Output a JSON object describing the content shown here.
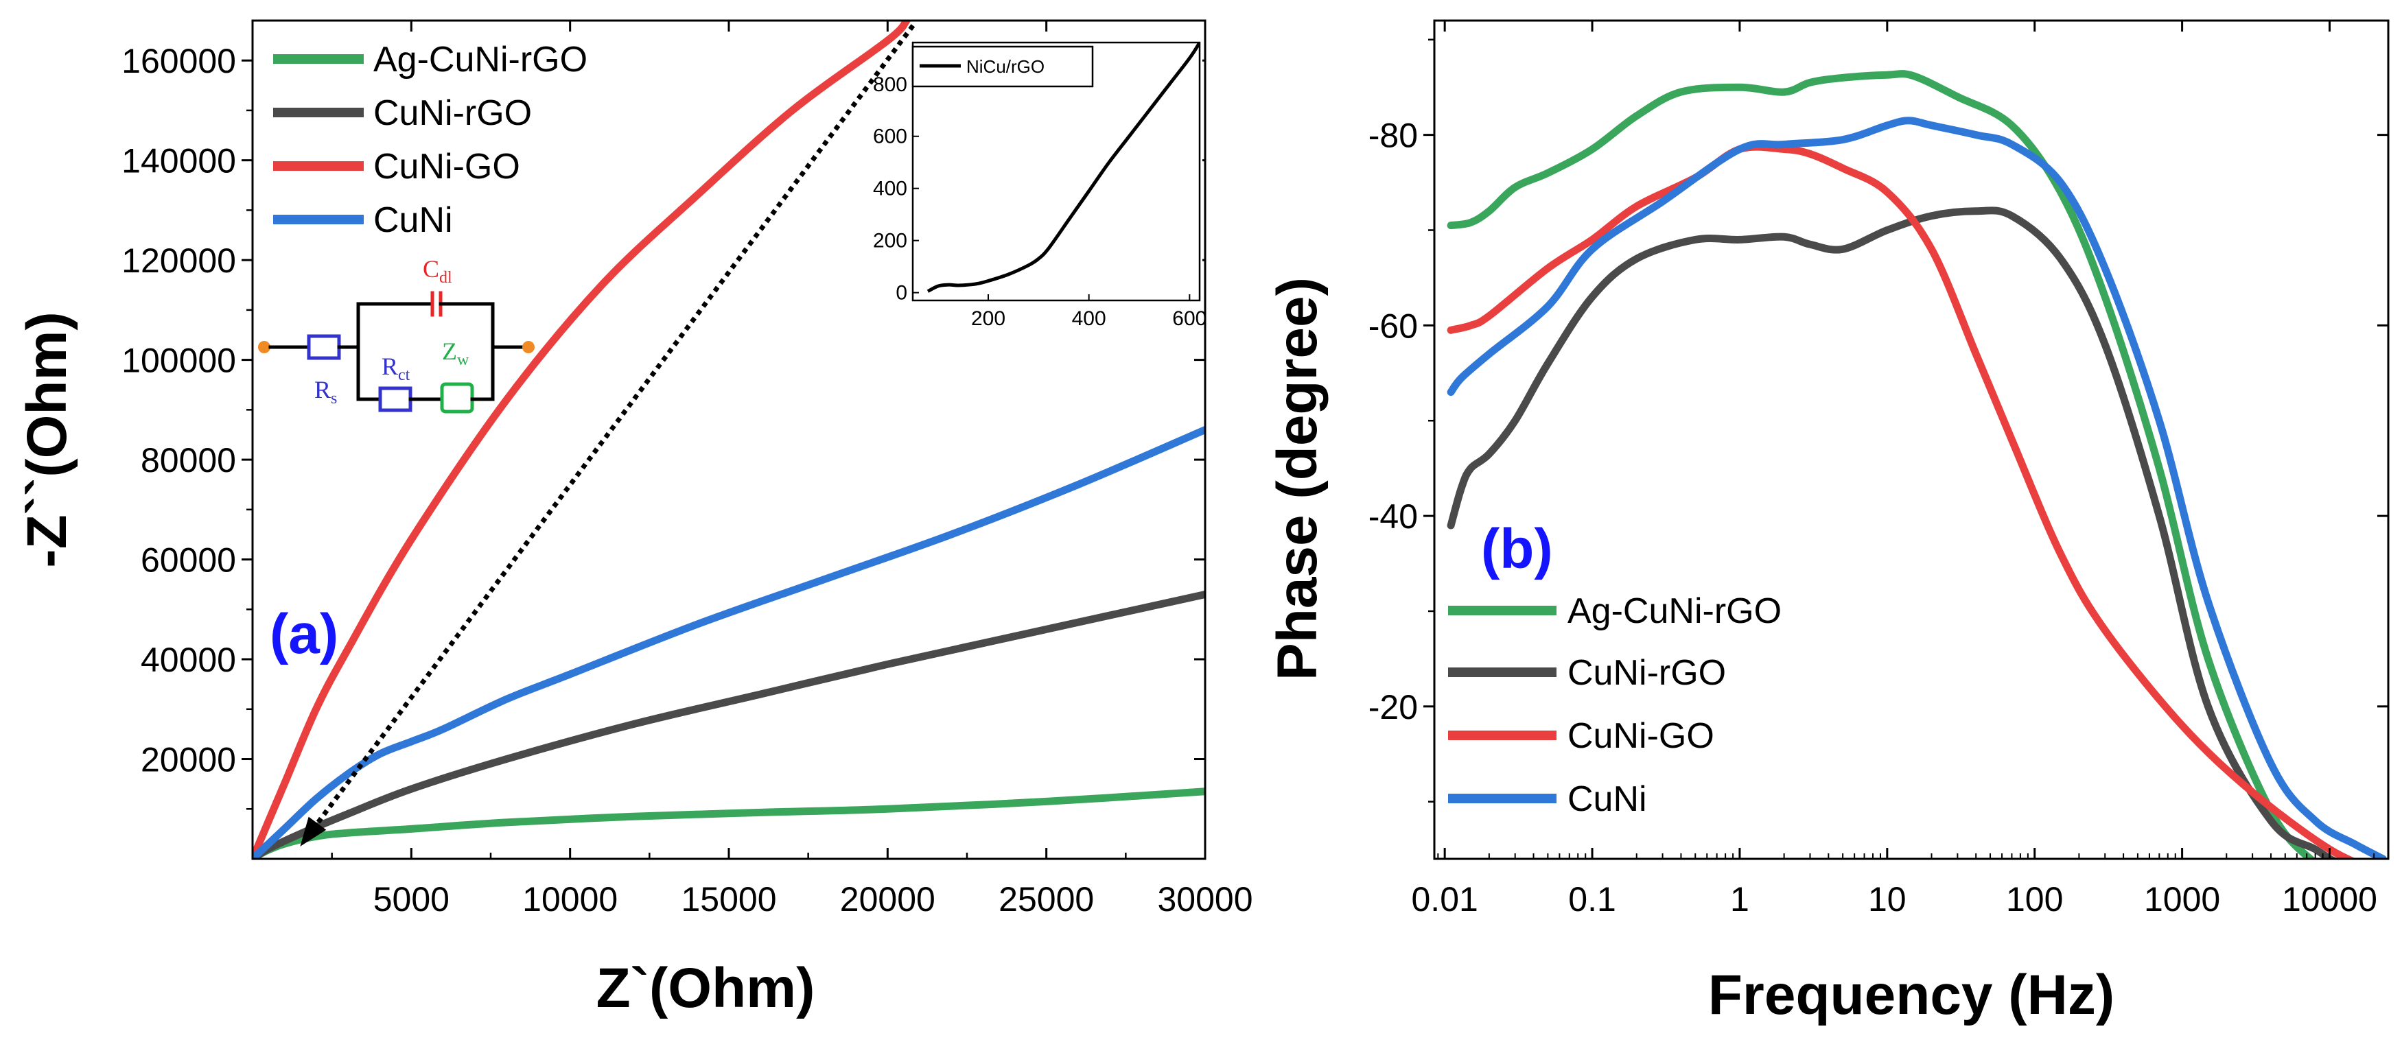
{
  "colors": {
    "green": "#3aa65c",
    "black": "#4a4a4a",
    "red": "#ea3f3f",
    "blue": "#2f78d8",
    "label_blue": "#1414ff",
    "cdl_red": "#e82828",
    "zw_green": "#1fb04a",
    "terminal": "#f08a24"
  },
  "chart_data": [
    {
      "id": "a",
      "type": "line",
      "panel_label": "(a)",
      "xlabel": "Z`(Ohm)",
      "ylabel": "-Z``(Ohm)",
      "xlim": [
        0,
        30000
      ],
      "ylim": [
        0,
        168000
      ],
      "xticks": [
        5000,
        10000,
        15000,
        20000,
        25000,
        30000
      ],
      "xtick_labels": [
        "5000",
        "10000",
        "15000",
        "20000",
        "25000",
        "30000"
      ],
      "yticks": [
        20000,
        40000,
        60000,
        80000,
        100000,
        120000,
        140000,
        160000
      ],
      "ytick_labels": [
        "20000",
        "40000",
        "60000",
        "80000",
        "100000",
        "120000",
        "140000",
        "160000"
      ],
      "legend": [
        "Ag-CuNi-rGO",
        "CuNi-rGO",
        "CuNi-GO",
        "CuNi"
      ],
      "series": [
        {
          "name": "Ag-CuNi-rGO",
          "color": "green",
          "x": [
            0,
            400,
            1000,
            2000,
            3000,
            5000,
            8000,
            12000,
            16000,
            20000,
            25000,
            30000
          ],
          "y": [
            0,
            1500,
            3000,
            4500,
            5200,
            6000,
            7300,
            8500,
            9300,
            10000,
            11500,
            13500
          ]
        },
        {
          "name": "CuNi-rGO",
          "color": "black",
          "x": [
            0,
            500,
            1500,
            3000,
            5000,
            8000,
            12000,
            16000,
            20000,
            25000,
            30000
          ],
          "y": [
            0,
            2000,
            5000,
            9000,
            14000,
            20000,
            27000,
            33000,
            39000,
            46000,
            53000
          ]
        },
        {
          "name": "CuNi-GO",
          "color": "red",
          "x": [
            0,
            1000,
            2000,
            3000,
            5000,
            8000,
            11000,
            14000,
            17000,
            20000,
            20600
          ],
          "y": [
            0,
            15000,
            30000,
            42000,
            64000,
            92000,
            115000,
            133000,
            150000,
            164000,
            168000
          ]
        },
        {
          "name": "CuNi",
          "color": "blue",
          "x": [
            0,
            1000,
            2000,
            3000,
            4000,
            5000,
            6000,
            8000,
            10000,
            14000,
            18000,
            22000,
            26000,
            30000
          ],
          "y": [
            0,
            6000,
            12000,
            17000,
            21000,
            23500,
            26000,
            32000,
            37000,
            47000,
            56000,
            65000,
            75000,
            86000
          ]
        }
      ],
      "arrow": {
        "from": [
          20800,
          167000
        ],
        "to": [
          1500,
          2500
        ]
      },
      "inset": {
        "xlim": [
          50,
          620
        ],
        "ylim": [
          -30,
          960
        ],
        "xticks": [
          200,
          400,
          600
        ],
        "xtick_labels": [
          "200",
          "400",
          "600"
        ],
        "yticks": [
          0,
          200,
          400,
          600,
          800
        ],
        "ytick_labels": [
          "0",
          "200",
          "400",
          "600",
          "800"
        ],
        "legend": "NiCu/rGO",
        "series": {
          "name": "NiCu/rGO",
          "color": "#000000",
          "x": [
            80,
            100,
            120,
            140,
            160,
            180,
            200,
            240,
            280,
            300,
            320,
            360,
            400,
            440,
            480,
            520,
            560,
            600,
            620
          ],
          "y": [
            5,
            25,
            30,
            28,
            30,
            35,
            45,
            70,
            105,
            130,
            170,
            280,
            390,
            500,
            600,
            700,
            800,
            900,
            960
          ]
        }
      },
      "circuit": {
        "cdl": "C",
        "cdl_sub": "dl",
        "rs": "R",
        "rs_sub": "s",
        "rct": "R",
        "rct_sub": "ct",
        "zw": "Z",
        "zw_sub": "w"
      }
    },
    {
      "id": "b",
      "type": "line",
      "panel_label": "(b)",
      "xlabel": "Frequency (Hz)",
      "ylabel": "Phase (degree)",
      "xscale": "log",
      "xlim": [
        0.0085,
        25000
      ],
      "ylim": [
        -4,
        -92
      ],
      "xticks": [
        0.01,
        0.1,
        1,
        10,
        100,
        1000,
        10000
      ],
      "xtick_labels": [
        "0.01",
        "0.1",
        "1",
        "10",
        "100",
        "1000",
        "10000"
      ],
      "yticks": [
        -20,
        -40,
        -60,
        -80
      ],
      "ytick_labels": [
        "-20",
        "-40",
        "-60",
        "-80"
      ],
      "legend": [
        "Ag-CuNi-rGO",
        "CuNi-rGO",
        "CuNi-GO",
        "CuNi"
      ],
      "series": [
        {
          "name": "Ag-CuNi-rGO",
          "color": "green",
          "x": [
            0.011,
            0.015,
            0.02,
            0.03,
            0.05,
            0.1,
            0.2,
            0.4,
            1,
            2,
            3,
            5,
            10,
            15,
            30,
            70,
            150,
            300,
            700,
            1500,
            4000,
            8000,
            10000,
            15000,
            23000
          ],
          "y": [
            -70.5,
            -70.8,
            -72,
            -74.5,
            -76,
            -78.5,
            -82,
            -84.5,
            -85,
            -84.5,
            -85.5,
            -86,
            -86.3,
            -86.2,
            -84,
            -81,
            -74,
            -63,
            -45,
            -25,
            -9,
            -3.5,
            -2.5,
            -2.7,
            -3.5
          ]
        },
        {
          "name": "CuNi-rGO",
          "color": "black",
          "x": [
            0.011,
            0.013,
            0.015,
            0.02,
            0.03,
            0.05,
            0.1,
            0.2,
            0.5,
            1,
            2,
            3,
            5,
            10,
            20,
            40,
            70,
            150,
            300,
            700,
            1500,
            4000,
            8000,
            12000,
            23000
          ],
          "y": [
            -39,
            -43,
            -45,
            -46.5,
            -50,
            -56,
            -63,
            -67,
            -69,
            -69,
            -69.3,
            -68.5,
            -68,
            -70,
            -71.5,
            -72,
            -71.5,
            -67,
            -58,
            -40,
            -20,
            -8,
            -5,
            -3.5,
            -3
          ]
        },
        {
          "name": "CuNi-GO",
          "color": "red",
          "x": [
            0.011,
            0.015,
            0.02,
            0.05,
            0.1,
            0.2,
            0.5,
            1,
            2,
            3,
            5,
            10,
            20,
            40,
            70,
            150,
            300,
            1000,
            3000,
            10000,
            23000
          ],
          "y": [
            -59.5,
            -60,
            -61,
            -66,
            -69,
            -72.5,
            -75.5,
            -78.5,
            -78.5,
            -78,
            -76.5,
            -74,
            -68,
            -57,
            -48,
            -36,
            -28,
            -18,
            -11,
            -5,
            -2.5
          ]
        },
        {
          "name": "CuNi",
          "color": "blue",
          "x": [
            0.011,
            0.013,
            0.02,
            0.05,
            0.1,
            0.3,
            1,
            2,
            5,
            10,
            14,
            20,
            40,
            70,
            150,
            300,
            700,
            1500,
            4000,
            8000,
            15000,
            23000
          ],
          "y": [
            -53,
            -54.5,
            -57,
            -62,
            -68,
            -73,
            -78.5,
            -79,
            -79.5,
            -81,
            -81.5,
            -81,
            -80,
            -79,
            -75,
            -66,
            -50,
            -31,
            -14,
            -8,
            -5.5,
            -4
          ]
        }
      ]
    }
  ]
}
